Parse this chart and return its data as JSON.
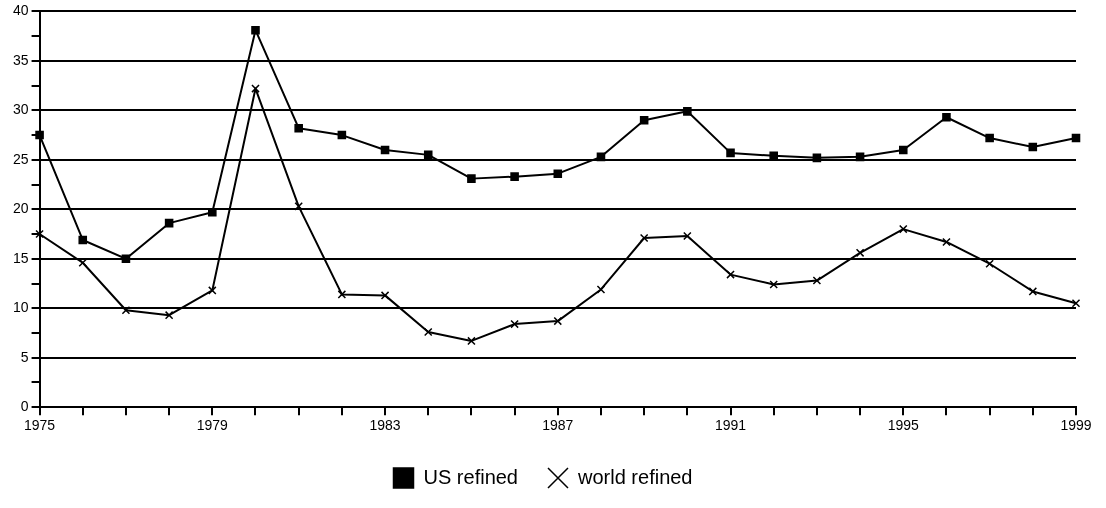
{
  "chart_data": {
    "type": "line",
    "categories": [
      "1975",
      null,
      null,
      null,
      "1979",
      null,
      null,
      null,
      "1983",
      null,
      null,
      null,
      "1987",
      null,
      null,
      null,
      "1991",
      null,
      null,
      null,
      "1995",
      null,
      null,
      null,
      "1999"
    ],
    "series": [
      {
        "name": "US refined",
        "color": "#000000",
        "marker": "square",
        "values": [
          27.5,
          16.9,
          15.0,
          18.6,
          19.7,
          38.1,
          28.2,
          27.5,
          26.0,
          25.5,
          23.1,
          23.3,
          23.6,
          25.3,
          29.0,
          29.9,
          25.7,
          25.4,
          25.2,
          25.3,
          26.0,
          29.3,
          27.2,
          26.3,
          27.2
        ]
      },
      {
        "name": "world refined",
        "color": "#000000",
        "marker": "cross",
        "values": [
          17.5,
          14.6,
          9.8,
          9.3,
          11.8,
          32.2,
          20.3,
          11.4,
          11.3,
          7.6,
          6.7,
          8.4,
          8.7,
          11.9,
          17.1,
          17.3,
          13.4,
          12.4,
          12.8,
          15.6,
          18.0,
          16.7,
          14.5,
          11.7,
          10.5
        ]
      }
    ],
    "ylim": [
      0,
      40
    ],
    "yticks": [
      0,
      {
        "value": 2.5,
        "label": null
      },
      5,
      {
        "value": 7.5,
        "label": null
      },
      10,
      {
        "value": 12.5,
        "label": null
      },
      15,
      {
        "value": 17.5,
        "label": null
      },
      20,
      {
        "value": 22.5,
        "label": null
      },
      25,
      {
        "value": 27.5,
        "label": null
      },
      30,
      {
        "value": 32.5,
        "label": null
      },
      35,
      {
        "value": 37.5,
        "label": null
      },
      40
    ],
    "grid": "y",
    "legend": "bottom",
    "line_style": "solid"
  }
}
